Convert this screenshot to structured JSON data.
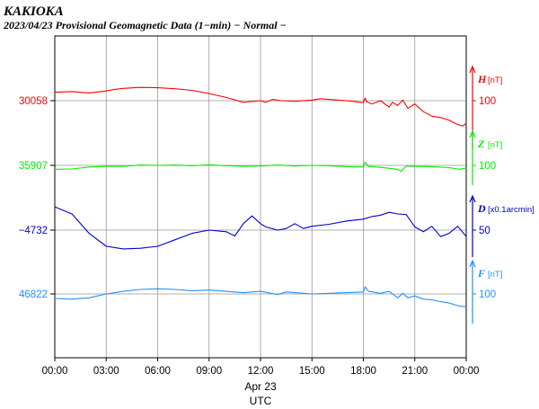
{
  "header": {
    "station": "KAKIOKA",
    "subtitle": "2023/04/23  Provisional Geomagnetic Data (1−min)  − Normal −"
  },
  "chart_data": {
    "type": "line",
    "x_tick_labels": [
      "00:00",
      "03:00",
      "06:00",
      "09:00",
      "12:00",
      "15:00",
      "18:00",
      "21:00",
      "00:00"
    ],
    "x_date_label": "Apr 23",
    "xlabel": "UTC",
    "grid": true,
    "series": [
      {
        "key": "H",
        "name": "H",
        "unit": "[nT]",
        "base_value": "30058",
        "scale_label": "100",
        "color": "#ff0000",
        "points": [
          [
            0,
            -26
          ],
          [
            1,
            -28
          ],
          [
            2,
            -24
          ],
          [
            3,
            -30
          ],
          [
            3.5,
            -35
          ],
          [
            4,
            -38
          ],
          [
            5,
            -41
          ],
          [
            6,
            -40
          ],
          [
            7,
            -37
          ],
          [
            8,
            -32
          ],
          [
            9,
            -22
          ],
          [
            10,
            -10
          ],
          [
            11,
            5
          ],
          [
            12,
            0
          ],
          [
            12.3,
            5
          ],
          [
            12.7,
            -4
          ],
          [
            13.2,
            0
          ],
          [
            14,
            2
          ],
          [
            15,
            -2
          ],
          [
            15.5,
            -6
          ],
          [
            16,
            -4
          ],
          [
            17,
            0
          ],
          [
            18,
            6
          ],
          [
            18.1,
            -8
          ],
          [
            18.2,
            4
          ],
          [
            18.5,
            10
          ],
          [
            19,
            0
          ],
          [
            19.5,
            20
          ],
          [
            19.7,
            5
          ],
          [
            20,
            15
          ],
          [
            20.3,
            -2
          ],
          [
            20.6,
            24
          ],
          [
            20.8,
            17
          ],
          [
            21,
            10
          ],
          [
            21.5,
            34
          ],
          [
            22,
            48
          ],
          [
            22.5,
            52
          ],
          [
            23,
            60
          ],
          [
            23.5,
            74
          ],
          [
            23.8,
            78
          ],
          [
            24,
            70
          ]
        ]
      },
      {
        "key": "Z",
        "name": "Z",
        "unit": "[nT]",
        "base_value": "35907",
        "scale_label": "100",
        "color": "#00ee00",
        "points": [
          [
            0,
            12
          ],
          [
            1,
            11
          ],
          [
            2,
            5
          ],
          [
            3,
            3
          ],
          [
            4,
            3
          ],
          [
            5,
            -1
          ],
          [
            6,
            0
          ],
          [
            7,
            -1
          ],
          [
            8,
            1
          ],
          [
            9,
            -2
          ],
          [
            10,
            1
          ],
          [
            11,
            3
          ],
          [
            12,
            2
          ],
          [
            13,
            -1
          ],
          [
            14,
            2
          ],
          [
            15,
            0
          ],
          [
            16,
            1
          ],
          [
            17,
            4
          ],
          [
            18,
            5
          ],
          [
            18.1,
            -10
          ],
          [
            18.3,
            3
          ],
          [
            19,
            6
          ],
          [
            20,
            12
          ],
          [
            20.2,
            18
          ],
          [
            20.5,
            2
          ],
          [
            21,
            3
          ],
          [
            22,
            4
          ],
          [
            23,
            7
          ],
          [
            23.6,
            12
          ],
          [
            24,
            8
          ]
        ]
      },
      {
        "key": "D",
        "name": "D",
        "unit": "[x0.1arcmin]",
        "base_value": "−4732",
        "scale_label": "50",
        "color": "#0000cc",
        "points": [
          [
            0,
            -72
          ],
          [
            1,
            -50
          ],
          [
            2,
            10
          ],
          [
            3,
            50
          ],
          [
            4,
            58
          ],
          [
            5,
            56
          ],
          [
            6,
            50
          ],
          [
            7,
            30
          ],
          [
            8,
            10
          ],
          [
            9,
            0
          ],
          [
            10,
            5
          ],
          [
            10.5,
            18
          ],
          [
            11,
            -20
          ],
          [
            11.5,
            -44
          ],
          [
            12,
            -20
          ],
          [
            12.3,
            -10
          ],
          [
            13,
            0
          ],
          [
            13.5,
            -5
          ],
          [
            14,
            -20
          ],
          [
            14.5,
            -5
          ],
          [
            15,
            -12
          ],
          [
            16,
            -18
          ],
          [
            17,
            -28
          ],
          [
            18,
            -34
          ],
          [
            18.5,
            -42
          ],
          [
            19,
            -46
          ],
          [
            19.5,
            -55
          ],
          [
            20,
            -50
          ],
          [
            20.5,
            -48
          ],
          [
            21,
            -10
          ],
          [
            21.5,
            5
          ],
          [
            22,
            -12
          ],
          [
            22.5,
            20
          ],
          [
            23,
            10
          ],
          [
            23.5,
            -12
          ],
          [
            24,
            20
          ]
        ]
      },
      {
        "key": "F",
        "name": "F",
        "unit": "[nT]",
        "base_value": "46822",
        "scale_label": "100",
        "color": "#1e90ff",
        "points": [
          [
            0,
            14
          ],
          [
            1,
            16
          ],
          [
            2,
            12
          ],
          [
            3,
            0
          ],
          [
            4,
            -8
          ],
          [
            5,
            -14
          ],
          [
            6,
            -16
          ],
          [
            7,
            -14
          ],
          [
            8,
            -10
          ],
          [
            9,
            -12
          ],
          [
            10,
            -8
          ],
          [
            11,
            -4
          ],
          [
            12,
            -8
          ],
          [
            13,
            2
          ],
          [
            13.5,
            -6
          ],
          [
            14,
            -4
          ],
          [
            15,
            0
          ],
          [
            16,
            -2
          ],
          [
            17,
            -4
          ],
          [
            18,
            -6
          ],
          [
            18.1,
            -22
          ],
          [
            18.3,
            -8
          ],
          [
            19,
            -2
          ],
          [
            19.5,
            -8
          ],
          [
            20,
            12
          ],
          [
            20.3,
            -2
          ],
          [
            20.6,
            12
          ],
          [
            21,
            6
          ],
          [
            21.5,
            16
          ],
          [
            22,
            18
          ],
          [
            22.5,
            24
          ],
          [
            23,
            28
          ],
          [
            23.5,
            36
          ],
          [
            24,
            40
          ]
        ]
      }
    ]
  }
}
